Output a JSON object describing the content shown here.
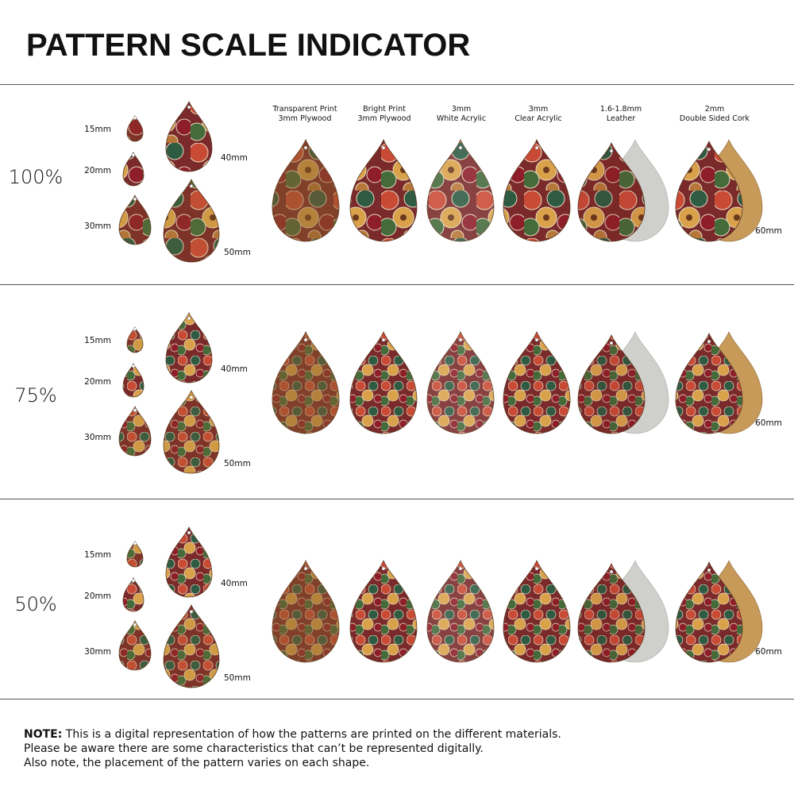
{
  "title": "PATTERN SCALE INDICATOR",
  "materials": [
    {
      "line1": "Transparent Print",
      "line2": "3mm Plywood"
    },
    {
      "line1": "Bright Print",
      "line2": "3mm Plywood"
    },
    {
      "line1": "3mm",
      "line2": "White Acrylic"
    },
    {
      "line1": "3mm",
      "line2": "Clear Acrylic"
    },
    {
      "line1": "1.6-1.8mm",
      "line2": "Leather"
    },
    {
      "line1": "2mm",
      "line2": "Double Sided Cork"
    }
  ],
  "sections": [
    {
      "scale": "100%",
      "sizes": [
        "15mm",
        "20mm",
        "30mm",
        "40mm",
        "50mm"
      ],
      "large_size": "60mm"
    },
    {
      "scale": "75%",
      "sizes": [
        "15mm",
        "20mm",
        "30mm",
        "40mm",
        "50mm"
      ],
      "large_size": "60mm"
    },
    {
      "scale": "50%",
      "sizes": [
        "15mm",
        "20mm",
        "30mm",
        "40mm",
        "50mm"
      ],
      "large_size": "60mm"
    }
  ],
  "note": {
    "label": "NOTE:",
    "lines": [
      "This is a digital representation of how the patterns are printed on the different materials.",
      "Please be aware there are some characteristics that can’t be represented digitally.",
      "Also note, the placement of the pattern varies on each shape."
    ]
  }
}
